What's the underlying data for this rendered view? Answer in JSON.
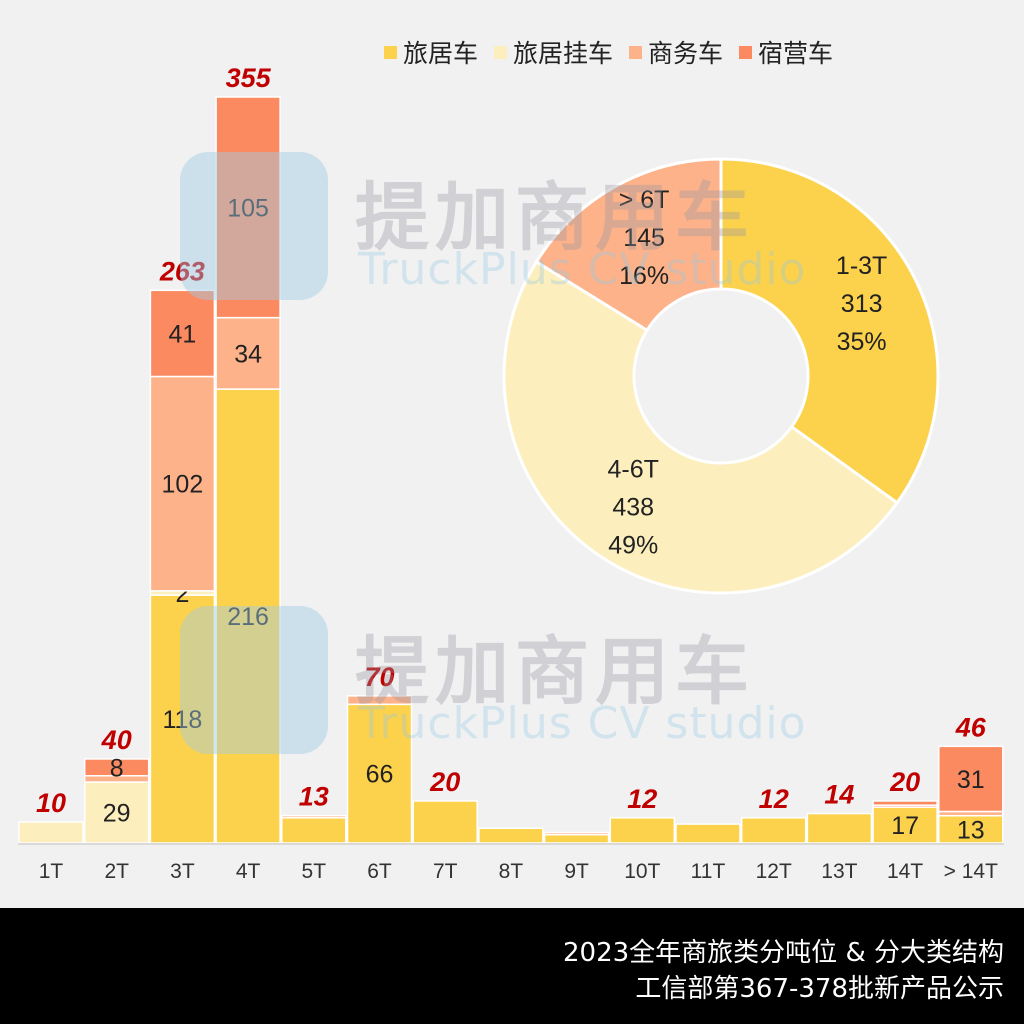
{
  "legend": [
    {
      "label": "旅居车",
      "color": "#fcd24c"
    },
    {
      "label": "旅居挂车",
      "color": "#fdefbd"
    },
    {
      "label": "商务车",
      "color": "#fdb28a"
    },
    {
      "label": "宿营车",
      "color": "#fc8a60"
    }
  ],
  "footer": {
    "line1": "2023全年商旅类分吨位  & 分大类结构",
    "line2": "工信部第367-378批新产品公示"
  },
  "watermark": {
    "cn": "提加商用车",
    "en": "TruckPlus CV studio"
  },
  "chart_data": [
    {
      "type": "bar",
      "stacked": true,
      "title": "2023全年商旅类分吨位",
      "categories": [
        "1T",
        "2T",
        "3T",
        "4T",
        "5T",
        "6T",
        "7T",
        "8T",
        "9T",
        "10T",
        "11T",
        "12T",
        "13T",
        "14T",
        "> 14T"
      ],
      "series": [
        {
          "name": "旅居车",
          "color": "#fcd24c",
          "values": [
            0,
            0,
            118,
            216,
            12,
            66,
            20,
            7,
            4,
            12,
            9,
            12,
            14,
            17,
            13
          ],
          "labels": [
            null,
            null,
            "118",
            "216",
            null,
            "66",
            null,
            null,
            null,
            null,
            null,
            null,
            null,
            "17",
            "13"
          ]
        },
        {
          "name": "旅居挂车",
          "color": "#fdefbd",
          "values": [
            10,
            29,
            2,
            0,
            0,
            0,
            0,
            0,
            0,
            0,
            0,
            0,
            0,
            0,
            0
          ],
          "labels": [
            null,
            "29",
            "2",
            null,
            null,
            null,
            null,
            null,
            null,
            null,
            null,
            null,
            null,
            null,
            null
          ]
        },
        {
          "name": "商务车",
          "color": "#fdb28a",
          "values": [
            0,
            3,
            102,
            34,
            1,
            4,
            0,
            0,
            1,
            0,
            0,
            0,
            0,
            1,
            2
          ],
          "labels": [
            null,
            null,
            "102",
            "34",
            null,
            null,
            null,
            null,
            null,
            null,
            null,
            null,
            null,
            null,
            null
          ]
        },
        {
          "name": "宿营车",
          "color": "#fc8a60",
          "values": [
            0,
            8,
            41,
            105,
            0,
            0,
            0,
            0,
            0,
            0,
            0,
            0,
            0,
            2,
            31
          ],
          "labels": [
            null,
            "8",
            "41",
            "105",
            null,
            null,
            null,
            null,
            null,
            null,
            null,
            null,
            null,
            null,
            "31"
          ]
        }
      ],
      "totals": [
        10,
        40,
        263,
        355,
        13,
        70,
        20,
        null,
        null,
        12,
        null,
        12,
        14,
        20,
        46
      ],
      "total_label_color": "#c00000",
      "ylim": [
        0,
        355
      ],
      "grid": false,
      "legend_position": "top-right"
    },
    {
      "type": "pie",
      "donut": true,
      "title": "分大类结构",
      "slices": [
        {
          "label": "1-3T",
          "value": 313,
          "percent": "35%",
          "color": "#fcd24c"
        },
        {
          "label": "4-6T",
          "value": 438,
          "percent": "49%",
          "color": "#fdefbd"
        },
        {
          "label": "> 6T",
          "value": 145,
          "percent": "16%",
          "color": "#fdb28a"
        }
      ]
    }
  ]
}
